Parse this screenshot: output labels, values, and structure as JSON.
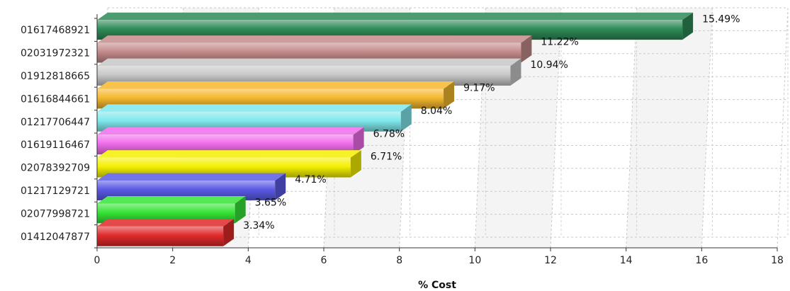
{
  "chart_data": {
    "type": "bar",
    "orientation": "horizontal",
    "categories": [
      "01617468921",
      "02031972321",
      "01912818665",
      "01616844661",
      "01217706447",
      "01619116467",
      "02078392709",
      "01217129721",
      "02077998721",
      "01412047877"
    ],
    "values": [
      15.49,
      11.22,
      10.94,
      9.17,
      8.04,
      6.78,
      6.71,
      4.71,
      3.65,
      3.34
    ],
    "data_labels": [
      "15.49%",
      "11.22%",
      "10.94%",
      "9.17%",
      "8.04%",
      "6.78%",
      "6.71%",
      "4.71%",
      "3.65%",
      "3.34%"
    ],
    "colors": [
      "#2e8b57",
      "#c48a8a",
      "#c8c8c8",
      "#f5b82e",
      "#7fe8ec",
      "#f06cec",
      "#f4f000",
      "#5a5ae6",
      "#36e436",
      "#e02a2a"
    ],
    "xlabel": "% Cost",
    "ylabel": "",
    "title": "",
    "xlim": [
      0,
      18
    ],
    "xticks": [
      0,
      2,
      4,
      6,
      8,
      10,
      12,
      14,
      16,
      18
    ],
    "grid": true,
    "style": "3d"
  }
}
